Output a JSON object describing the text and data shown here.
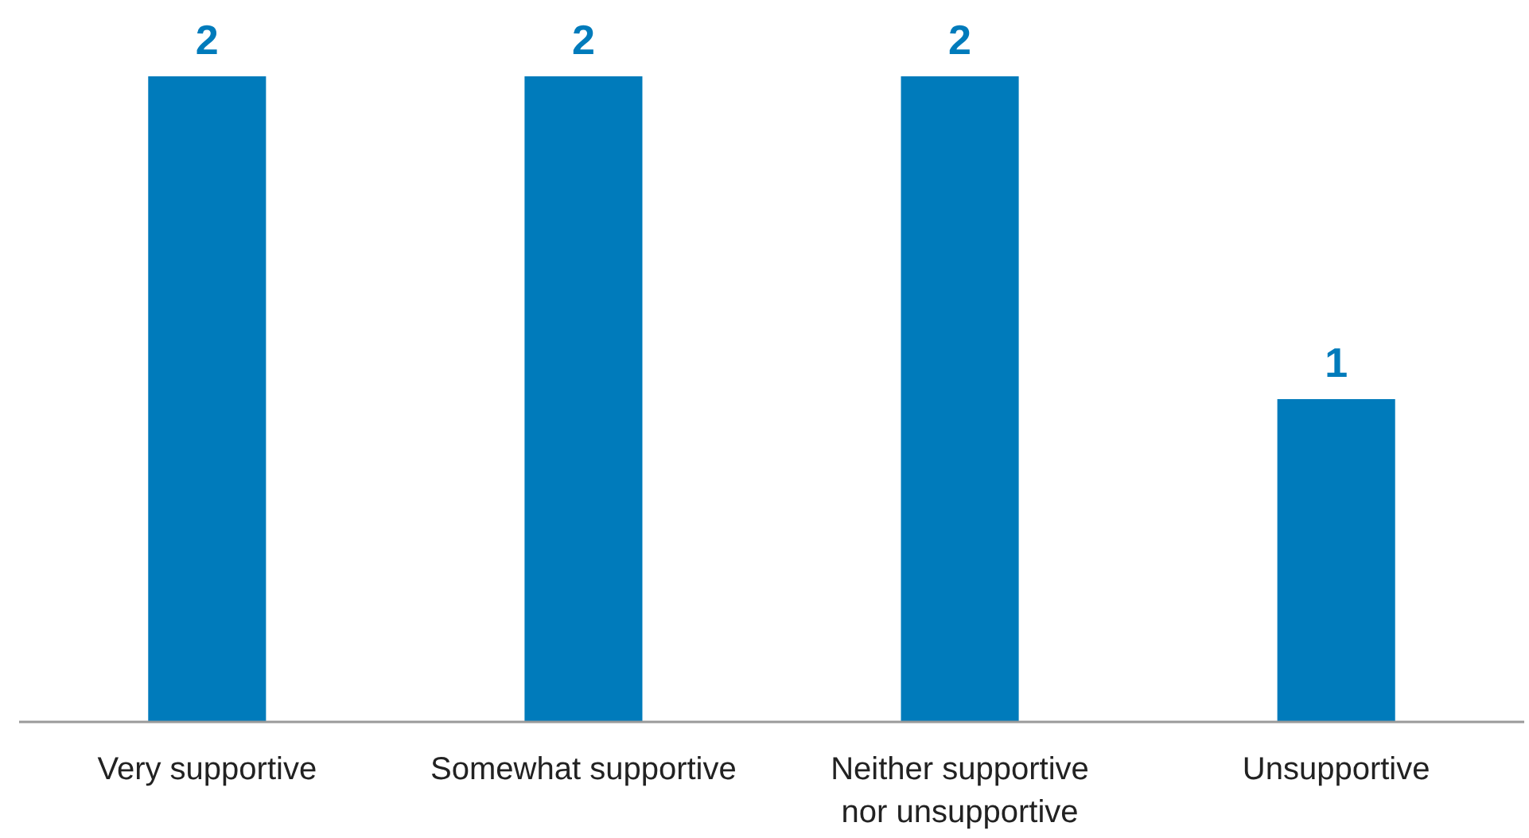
{
  "chart_data": {
    "type": "bar",
    "relative": false,
    "categories": [
      "Very supportive",
      "Somewhat supportive",
      "Neither supportive nor unsupportive",
      "Unsupportive"
    ],
    "values": [
      2,
      2,
      2,
      1
    ],
    "color": "#007bbb",
    "data_labels": true
  }
}
